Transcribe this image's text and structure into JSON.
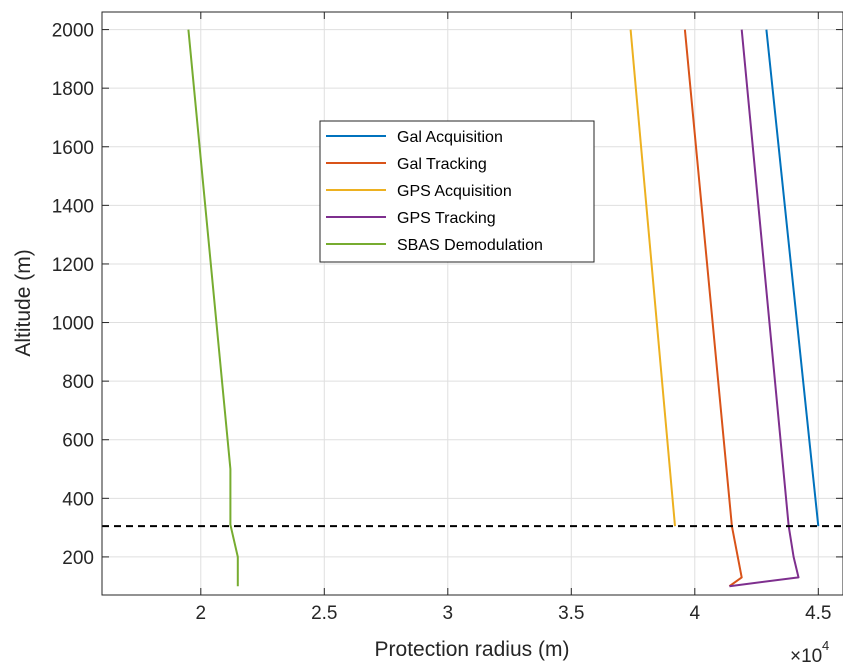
{
  "chart_data": {
    "type": "line",
    "xlabel": "Protection radius (m)",
    "ylabel": "Altitude (m)",
    "x_multiplier": {
      "base": "×10",
      "exponent": "4"
    },
    "xlim": [
      1.6,
      4.6
    ],
    "ylim": [
      70,
      2060
    ],
    "x_ticks": [
      2,
      2.5,
      3,
      3.5,
      4,
      4.5
    ],
    "x_tick_labels": [
      "2",
      "2.5",
      "3",
      "3.5",
      "4",
      "4.5"
    ],
    "y_ticks": [
      200,
      400,
      600,
      800,
      1000,
      1200,
      1400,
      1600,
      1800,
      2000
    ],
    "y_tick_labels": [
      "200",
      "400",
      "600",
      "800",
      "1000",
      "1200",
      "1400",
      "1600",
      "1800",
      "2000"
    ],
    "grid": true,
    "legend_position": "upper-center",
    "reference_line": {
      "y": 305,
      "style": "dashed",
      "color": "#000000"
    },
    "series": [
      {
        "name": "Gal Acquisition",
        "color": "#0072BD",
        "points": [
          [
            4.29,
            2000
          ],
          [
            4.5,
            305
          ]
        ]
      },
      {
        "name": "Gal Tracking",
        "color": "#D95319",
        "points": [
          [
            3.96,
            2000
          ],
          [
            4.15,
            305
          ],
          [
            4.19,
            130
          ],
          [
            4.14,
            100
          ]
        ]
      },
      {
        "name": "GPS Acquisition",
        "color": "#EDB120",
        "points": [
          [
            3.74,
            2000
          ],
          [
            3.92,
            305
          ]
        ]
      },
      {
        "name": "GPS Tracking",
        "color": "#7E2F8E",
        "points": [
          [
            4.19,
            2000
          ],
          [
            4.38,
            305
          ],
          [
            4.4,
            200
          ],
          [
            4.42,
            130
          ],
          [
            4.14,
            100
          ]
        ]
      },
      {
        "name": "SBAS Demodulation",
        "color": "#77AC30",
        "points": [
          [
            1.95,
            2000
          ],
          [
            2.12,
            500
          ],
          [
            2.12,
            310
          ],
          [
            2.15,
            200
          ],
          [
            2.15,
            100
          ]
        ]
      }
    ]
  }
}
